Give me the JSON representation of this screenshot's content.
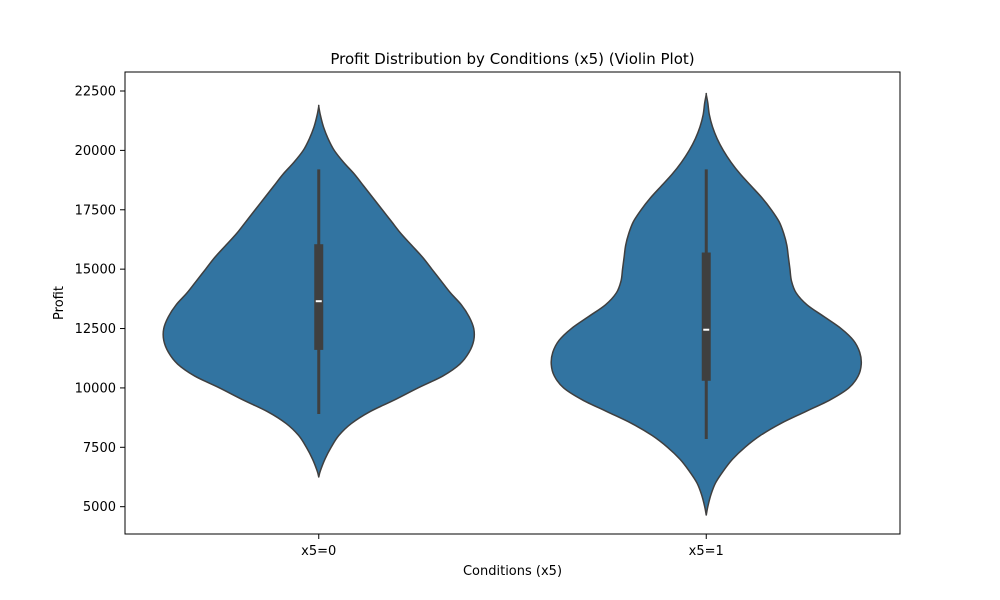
{
  "chart_data": {
    "type": "violin",
    "title": "Profit Distribution by Conditions (x5) (Violin Plot)",
    "xlabel": "Conditions (x5)",
    "ylabel": "Profit",
    "ylim": [
      3850,
      23300
    ],
    "yticks": [
      5000,
      7500,
      10000,
      12500,
      15000,
      17500,
      20000,
      22500
    ],
    "grid": false,
    "legend": "none",
    "color": "#3274a1",
    "edge_color": "#3f3f3f",
    "categories": [
      "x5=0",
      "x5=1"
    ],
    "violins": [
      {
        "category": "x5=0",
        "min": 8900,
        "q1": 11600,
        "median": 13650,
        "q3": 16050,
        "max": 19200,
        "density": [
          [
            6250,
            0.0
          ],
          [
            6500,
            0.01
          ],
          [
            7000,
            0.04
          ],
          [
            7500,
            0.08
          ],
          [
            8000,
            0.13
          ],
          [
            8500,
            0.21
          ],
          [
            9000,
            0.33
          ],
          [
            9500,
            0.49
          ],
          [
            10000,
            0.64
          ],
          [
            10500,
            0.8
          ],
          [
            11000,
            0.91
          ],
          [
            11500,
            0.97
          ],
          [
            12000,
            1.0
          ],
          [
            12500,
            1.0
          ],
          [
            13000,
            0.97
          ],
          [
            13500,
            0.92
          ],
          [
            14000,
            0.85
          ],
          [
            14500,
            0.79
          ],
          [
            15000,
            0.73
          ],
          [
            15500,
            0.67
          ],
          [
            16000,
            0.6
          ],
          [
            16500,
            0.53
          ],
          [
            17000,
            0.47
          ],
          [
            17500,
            0.41
          ],
          [
            18000,
            0.35
          ],
          [
            18500,
            0.29
          ],
          [
            19000,
            0.23
          ],
          [
            19500,
            0.16
          ],
          [
            20000,
            0.1
          ],
          [
            20500,
            0.06
          ],
          [
            21000,
            0.03
          ],
          [
            21500,
            0.01
          ],
          [
            21850,
            0.0
          ]
        ]
      },
      {
        "category": "x5=1",
        "min": 7850,
        "q1": 10300,
        "median": 12450,
        "q3": 15700,
        "max": 19200,
        "density": [
          [
            4650,
            0.0
          ],
          [
            5000,
            0.01
          ],
          [
            5500,
            0.03
          ],
          [
            6000,
            0.06
          ],
          [
            6500,
            0.11
          ],
          [
            7000,
            0.17
          ],
          [
            7500,
            0.25
          ],
          [
            8000,
            0.35
          ],
          [
            8500,
            0.48
          ],
          [
            9000,
            0.64
          ],
          [
            9500,
            0.8
          ],
          [
            10000,
            0.92
          ],
          [
            10500,
            0.98
          ],
          [
            11000,
            1.0
          ],
          [
            11500,
            0.99
          ],
          [
            12000,
            0.95
          ],
          [
            12500,
            0.87
          ],
          [
            13000,
            0.76
          ],
          [
            13500,
            0.65
          ],
          [
            14000,
            0.58
          ],
          [
            14500,
            0.55
          ],
          [
            15000,
            0.54
          ],
          [
            15500,
            0.53
          ],
          [
            16000,
            0.52
          ],
          [
            16500,
            0.5
          ],
          [
            17000,
            0.47
          ],
          [
            17500,
            0.42
          ],
          [
            18000,
            0.36
          ],
          [
            18500,
            0.29
          ],
          [
            19000,
            0.22
          ],
          [
            19500,
            0.16
          ],
          [
            20000,
            0.11
          ],
          [
            20500,
            0.07
          ],
          [
            21000,
            0.04
          ],
          [
            21500,
            0.02
          ],
          [
            22000,
            0.01
          ],
          [
            22350,
            0.0
          ]
        ]
      }
    ]
  }
}
